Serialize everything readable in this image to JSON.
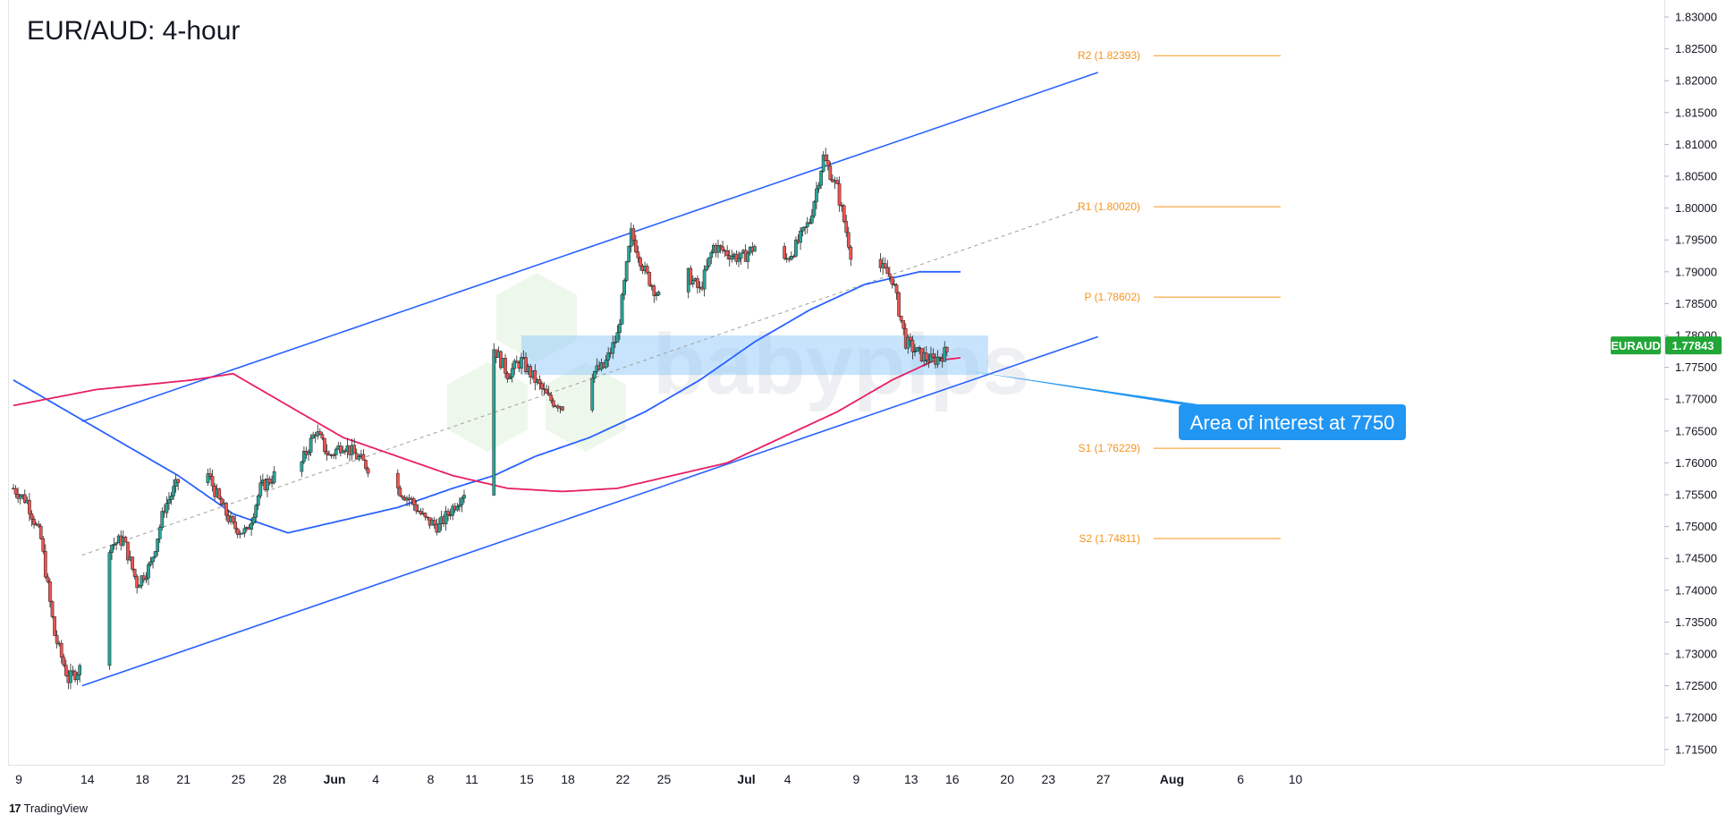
{
  "chart_data": {
    "type": "candlestick",
    "title": "EUR/AUD: 4-hour",
    "symbol": "EURAUD",
    "last_price": "1.77843",
    "price_axis": {
      "ylim": [
        1.7125,
        1.8325
      ],
      "ticks": [
        "1.83000",
        "1.82500",
        "1.82000",
        "1.81500",
        "1.81000",
        "1.80500",
        "1.80000",
        "1.79500",
        "1.79000",
        "1.78500",
        "1.78000",
        "1.77500",
        "1.77000",
        "1.76500",
        "1.76000",
        "1.75500",
        "1.75000",
        "1.74500",
        "1.74000",
        "1.73500",
        "1.73000",
        "1.72500",
        "1.72000",
        "1.71500"
      ]
    },
    "time_axis": {
      "ticks": [
        {
          "label": "9",
          "day": 0
        },
        {
          "label": "14",
          "day": 5
        },
        {
          "label": "18",
          "day": 9
        },
        {
          "label": "21",
          "day": 12
        },
        {
          "label": "25",
          "day": 16
        },
        {
          "label": "28",
          "day": 19
        },
        {
          "label": "Jun",
          "day": 23,
          "bold": true
        },
        {
          "label": "4",
          "day": 26
        },
        {
          "label": "8",
          "day": 30
        },
        {
          "label": "11",
          "day": 33
        },
        {
          "label": "15",
          "day": 37
        },
        {
          "label": "18",
          "day": 40
        },
        {
          "label": "22",
          "day": 44
        },
        {
          "label": "25",
          "day": 47
        },
        {
          "label": "Jul",
          "day": 53,
          "bold": true
        },
        {
          "label": "4",
          "day": 56
        },
        {
          "label": "9",
          "day": 61
        },
        {
          "label": "13",
          "day": 65
        },
        {
          "label": "16",
          "day": 68
        },
        {
          "label": "20",
          "day": 72
        },
        {
          "label": "23",
          "day": 75
        },
        {
          "label": "27",
          "day": 79
        },
        {
          "label": "Aug",
          "day": 84,
          "bold": true
        },
        {
          "label": "6",
          "day": 89
        },
        {
          "label": "10",
          "day": 93
        }
      ]
    },
    "price_path": [
      [
        0,
        1.756
      ],
      [
        1,
        1.754
      ],
      [
        2,
        1.748
      ],
      [
        3,
        1.733
      ],
      [
        4,
        1.726
      ],
      [
        5,
        1.728
      ],
      [
        6,
        1.74
      ],
      [
        7,
        1.747
      ],
      [
        8,
        1.748
      ],
      [
        9,
        1.741
      ],
      [
        10,
        1.744
      ],
      [
        11,
        1.753
      ],
      [
        12,
        1.757
      ],
      [
        13,
        1.76
      ],
      [
        14,
        1.759
      ],
      [
        15,
        1.754
      ],
      [
        16,
        1.75
      ],
      [
        17,
        1.749
      ],
      [
        18,
        1.756
      ],
      [
        19,
        1.758
      ],
      [
        20,
        1.75
      ],
      [
        21,
        1.76
      ],
      [
        22,
        1.765
      ],
      [
        23,
        1.761
      ],
      [
        24,
        1.763
      ],
      [
        25,
        1.761
      ],
      [
        26,
        1.759
      ],
      [
        27,
        1.757
      ],
      [
        28,
        1.756
      ],
      [
        29,
        1.754
      ],
      [
        30,
        1.751
      ],
      [
        31,
        1.75
      ],
      [
        32,
        1.753
      ],
      [
        33,
        1.756
      ],
      [
        34,
        1.772
      ],
      [
        35,
        1.778
      ],
      [
        36,
        1.774
      ],
      [
        37,
        1.776
      ],
      [
        38,
        1.773
      ],
      [
        39,
        1.77
      ],
      [
        40,
        1.769
      ],
      [
        41,
        1.766
      ],
      [
        42,
        1.774
      ],
      [
        43,
        1.775
      ],
      [
        44,
        1.78
      ],
      [
        45,
        1.796
      ],
      [
        46,
        1.79
      ],
      [
        47,
        1.786
      ],
      [
        48,
        1.789
      ],
      [
        49,
        1.79
      ],
      [
        50,
        1.787
      ],
      [
        51,
        1.794
      ],
      [
        52,
        1.793
      ],
      [
        53,
        1.792
      ],
      [
        54,
        1.794
      ],
      [
        55,
        1.79
      ],
      [
        56,
        1.791
      ],
      [
        57,
        1.794
      ],
      [
        58,
        1.798
      ],
      [
        59,
        1.808
      ],
      [
        60,
        1.803
      ],
      [
        61,
        1.793
      ],
      [
        62,
        1.792
      ],
      [
        63,
        1.791
      ],
      [
        64,
        1.789
      ],
      [
        65,
        1.779
      ],
      [
        66,
        1.777
      ],
      [
        67,
        1.776
      ],
      [
        68,
        1.7775
      ],
      [
        69,
        1.7784
      ]
    ],
    "last_day": 69,
    "ema_pink": [
      [
        0,
        1.769
      ],
      [
        6,
        1.7715
      ],
      [
        13,
        1.773
      ],
      [
        16,
        1.774
      ],
      [
        20,
        1.769
      ],
      [
        24,
        1.764
      ],
      [
        28,
        1.761
      ],
      [
        32,
        1.758
      ],
      [
        36,
        1.756
      ],
      [
        40,
        1.7555
      ],
      [
        44,
        1.756
      ],
      [
        48,
        1.758
      ],
      [
        52,
        1.76
      ],
      [
        56,
        1.764
      ],
      [
        60,
        1.768
      ],
      [
        64,
        1.773
      ],
      [
        67,
        1.776
      ],
      [
        69,
        1.7765
      ]
    ],
    "ema_blue": [
      [
        0,
        1.773
      ],
      [
        4,
        1.768
      ],
      [
        8,
        1.763
      ],
      [
        12,
        1.758
      ],
      [
        16,
        1.752
      ],
      [
        20,
        1.749
      ],
      [
        24,
        1.751
      ],
      [
        28,
        1.753
      ],
      [
        32,
        1.756
      ],
      [
        35,
        1.758
      ],
      [
        38,
        1.761
      ],
      [
        42,
        1.764
      ],
      [
        46,
        1.768
      ],
      [
        50,
        1.773
      ],
      [
        54,
        1.779
      ],
      [
        58,
        1.784
      ],
      [
        62,
        1.788
      ],
      [
        66,
        1.79
      ],
      [
        69,
        1.79
      ]
    ],
    "channel": {
      "upper": {
        "x1": 5,
        "y1": 1.7665,
        "x2": 84,
        "y2": 1.825
      },
      "lower": {
        "x1": 5,
        "y1": 1.725,
        "x2": 84,
        "y2": 1.7835
      },
      "mid": {
        "x1": 5,
        "y1": 1.7455,
        "x2": 84,
        "y2": 1.8045
      }
    },
    "pivots": [
      {
        "label": "R2 (1.82393)",
        "value": 1.82393
      },
      {
        "label": "R1 (1.80020)",
        "value": 1.8002
      },
      {
        "label": "P (1.78602)",
        "value": 1.78602
      },
      {
        "label": "S1 (1.76229)",
        "value": 1.76229
      },
      {
        "label": "S2 (1.74811)",
        "value": 1.74811
      }
    ],
    "zone": {
      "ylim": [
        1.7738,
        1.78
      ],
      "x_start": 37,
      "x_end": 71
    },
    "annotation": {
      "text": "Area of interest at 7750",
      "point_day": 69,
      "point_value": 1.7745
    },
    "colors": {
      "up": "#26a69a",
      "down": "#ef5350",
      "ema_pink": "#e91e63",
      "ema_blue": "#2962ff",
      "channel": "#2962ff",
      "pivot": "#f7941d",
      "badge": "#21a637",
      "callout": "#2196f3",
      "zone": "#90caf9"
    }
  },
  "watermark": "babypips",
  "footer": {
    "brand": "TradingView",
    "logo": "17"
  }
}
